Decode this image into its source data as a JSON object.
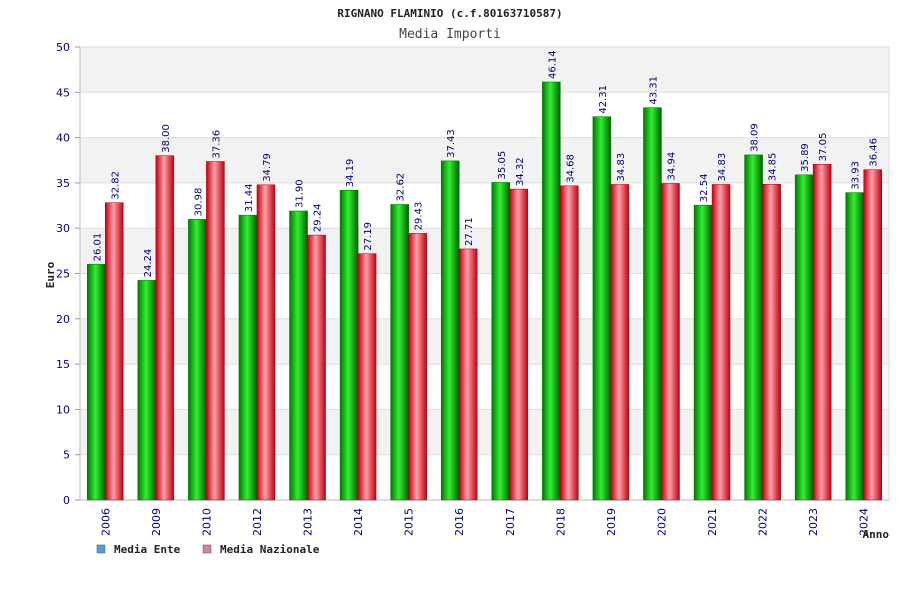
{
  "chart_data": {
    "type": "bar",
    "title": "RIGNANO FLAMINIO (c.f.80163710587)",
    "subtitle": "Media Importi",
    "xlabel": "Anno",
    "ylabel": "Euro",
    "ylim": [
      0,
      50
    ],
    "yticks": [
      0,
      5,
      10,
      15,
      20,
      25,
      30,
      35,
      40,
      45,
      50
    ],
    "grid": true,
    "legend_position": "bottom-left",
    "categories": [
      "2006",
      "2009",
      "2010",
      "2012",
      "2013",
      "2014",
      "2015",
      "2016",
      "2017",
      "2018",
      "2019",
      "2020",
      "2021",
      "2022",
      "2023",
      "2024"
    ],
    "series": [
      {
        "name": "Media Ente",
        "color": "#00b000",
        "legend_color": "#5b9bd5",
        "values": [
          26.01,
          24.24,
          30.98,
          31.44,
          31.9,
          34.19,
          32.62,
          37.43,
          35.05,
          46.14,
          42.31,
          43.31,
          32.54,
          38.09,
          35.89,
          33.93
        ],
        "labels": [
          "26.01",
          "24.24",
          "30.98",
          "31.44",
          "31.90",
          "34.19",
          "32.62",
          "37.43",
          "35.05",
          "46.14",
          "42.31",
          "43.31",
          "32.54",
          "38.09",
          "35.89",
          "33.93"
        ]
      },
      {
        "name": "Media Nazionale",
        "color": "#e01020",
        "legend_color": "#d9839a",
        "values": [
          32.82,
          38.0,
          37.36,
          34.79,
          29.24,
          27.19,
          29.43,
          27.71,
          34.32,
          34.68,
          34.83,
          34.94,
          34.83,
          34.85,
          37.05,
          36.46
        ],
        "labels": [
          "32.82",
          "38.00",
          "37.36",
          "34.79",
          "29.24",
          "27.19",
          "29.43",
          "27.71",
          "34.32",
          "34.68",
          "34.83",
          "34.94",
          "34.83",
          "34.85",
          "37.05",
          "36.46"
        ]
      }
    ]
  }
}
